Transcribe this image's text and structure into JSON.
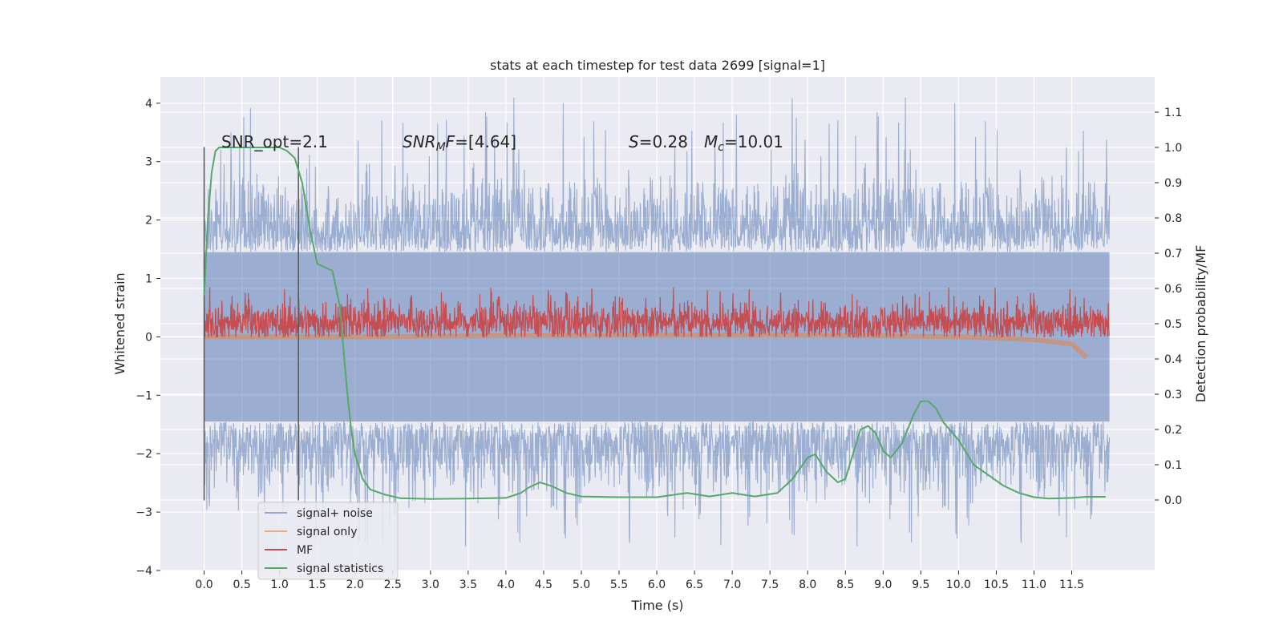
{
  "chart_data": {
    "type": "line",
    "title": "stats at each timestep for test data 2699 [signal=1]",
    "xlabel": "Time (s)",
    "ylabel": "Whitened strain",
    "ylabel_right": "Detection probability/MF",
    "xlim": [
      -0.58,
      12.6
    ],
    "ylim": [
      -4,
      4.45
    ],
    "ylim_right": [
      -0.2,
      1.2
    ],
    "x_ticks": [
      "0.0",
      "0.5",
      "1.0",
      "1.5",
      "2.0",
      "2.5",
      "3.0",
      "3.5",
      "4.0",
      "4.5",
      "5.0",
      "5.5",
      "6.0",
      "6.5",
      "7.0",
      "7.5",
      "8.0",
      "8.5",
      "9.0",
      "9.5",
      "10.0",
      "10.5",
      "11.0",
      "11.5"
    ],
    "y_ticks": [
      "4",
      "3",
      "2",
      "1",
      "0",
      "−1",
      "−2",
      "−3",
      "−4"
    ],
    "y_ticks_right": [
      "1.1",
      "1.0",
      "0.9",
      "0.8",
      "0.7",
      "0.6",
      "0.5",
      "0.4",
      "0.3",
      "0.2",
      "0.1",
      "0.0"
    ],
    "grid": true,
    "legend_placement": "lower-left",
    "annotations": {
      "snr_opt": "SNR_opt=2.1",
      "snr_mf": "=[4.64]",
      "s_value": "=0.28",
      "mc_value": "=10.01"
    },
    "vlines": [
      0.0,
      1.25
    ],
    "series": [
      {
        "name": "signal+ noise",
        "color": "#4c72b0",
        "kind": "noise",
        "x_range": [
          0.0,
          12.0
        ],
        "amplitude_band": [
          -2.3,
          2.4
        ],
        "peak_max": 4.1,
        "peak_min": -3.6
      },
      {
        "name": "signal only",
        "color": "#dd8452",
        "kind": "signal",
        "x": [
          0.0,
          2.0,
          4.0,
          6.0,
          8.0,
          10.0,
          11.0,
          11.5,
          11.7
        ],
        "y": [
          0.0,
          0.0,
          0.02,
          0.03,
          0.03,
          0.0,
          -0.05,
          -0.12,
          -0.35
        ]
      },
      {
        "name": "MF",
        "color": "#c44e52",
        "kind": "mf",
        "x_range": [
          0.0,
          12.0
        ],
        "center": 0.25,
        "band": [
          0.0,
          0.85
        ]
      },
      {
        "name": "signal statistics",
        "color": "#55a868",
        "axis": "right",
        "x": [
          0.0,
          0.05,
          0.1,
          0.15,
          0.2,
          0.4,
          0.6,
          0.8,
          1.0,
          1.1,
          1.2,
          1.3,
          1.4,
          1.5,
          1.6,
          1.7,
          1.8,
          1.85,
          1.9,
          1.95,
          2.0,
          2.1,
          2.2,
          2.4,
          2.6,
          3.0,
          3.5,
          4.0,
          4.2,
          4.3,
          4.45,
          4.6,
          4.8,
          5.0,
          5.5,
          6.0,
          6.4,
          6.7,
          7.0,
          7.3,
          7.6,
          7.8,
          8.0,
          8.1,
          8.25,
          8.4,
          8.5,
          8.6,
          8.7,
          8.8,
          8.9,
          9.0,
          9.1,
          9.25,
          9.4,
          9.5,
          9.6,
          9.7,
          9.8,
          10.0,
          10.2,
          10.4,
          10.6,
          10.8,
          11.0,
          11.2,
          11.5,
          11.7,
          11.95
        ],
        "y": [
          0.58,
          0.8,
          0.93,
          0.99,
          1.0,
          1.0,
          1.0,
          1.0,
          1.0,
          0.99,
          0.97,
          0.9,
          0.77,
          0.67,
          0.66,
          0.65,
          0.55,
          0.42,
          0.3,
          0.2,
          0.13,
          0.06,
          0.03,
          0.015,
          0.005,
          0.003,
          0.004,
          0.006,
          0.02,
          0.035,
          0.05,
          0.04,
          0.02,
          0.01,
          0.008,
          0.008,
          0.02,
          0.01,
          0.02,
          0.01,
          0.02,
          0.06,
          0.12,
          0.13,
          0.08,
          0.05,
          0.06,
          0.13,
          0.2,
          0.21,
          0.19,
          0.14,
          0.12,
          0.16,
          0.24,
          0.28,
          0.28,
          0.26,
          0.22,
          0.17,
          0.1,
          0.07,
          0.04,
          0.02,
          0.008,
          0.004,
          0.006,
          0.009,
          0.009
        ]
      }
    ]
  }
}
